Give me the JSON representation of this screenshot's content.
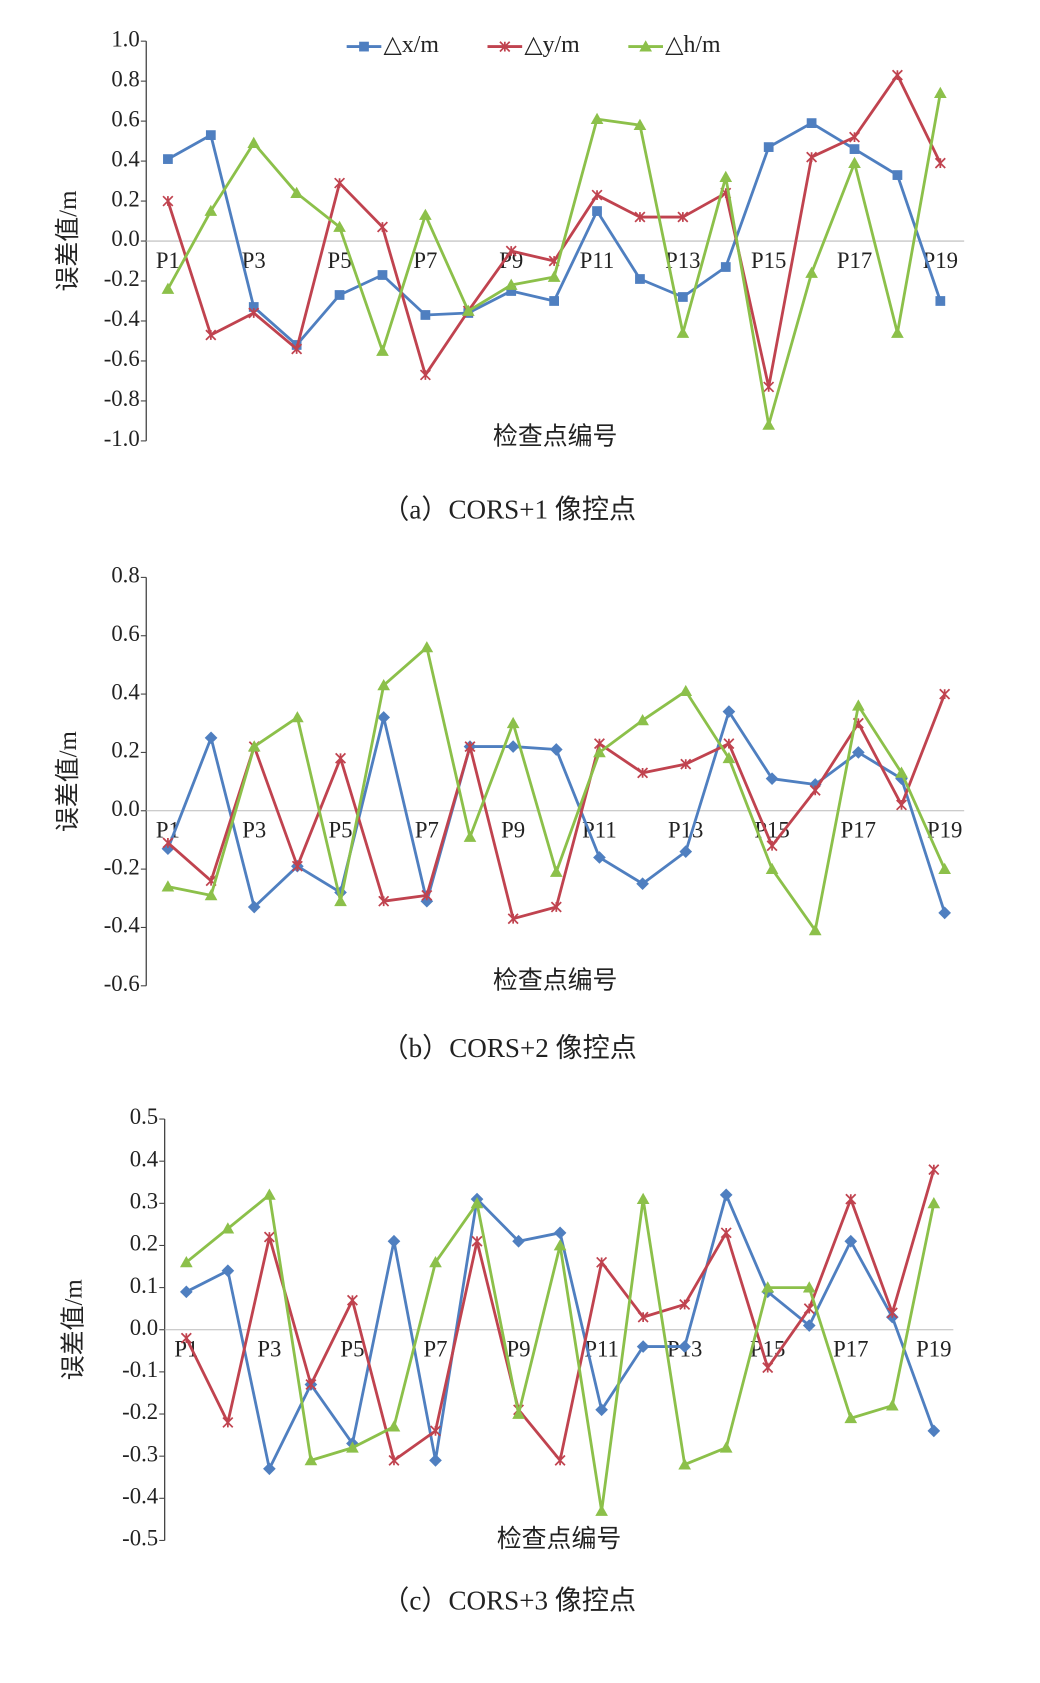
{
  "chart_data": [
    {
      "type": "line",
      "caption": "（a）CORS+1 像控点",
      "y_label": "误差值/m",
      "x_label": "检查点编号",
      "legend": "top",
      "categories": [
        "P1",
        null,
        "P3",
        null,
        "P5",
        null,
        "P7",
        null,
        "P9",
        null,
        "P11",
        null,
        "P13",
        null,
        "P15",
        null,
        "P17",
        null,
        "P19"
      ],
      "ylim": [
        -1,
        1
      ],
      "yticks": [
        {
          "value": -1,
          "label": "-1.0"
        },
        -0.8,
        -0.6,
        -0.4,
        -0.2,
        {
          "value": 0,
          "label": "0.0"
        },
        0.2,
        0.4,
        0.6,
        0.8,
        {
          "value": 1,
          "label": "1.0"
        }
      ],
      "series": [
        {
          "name": "△x/m",
          "color": "#4f7fc0",
          "marker": "square",
          "values": [
            0.41,
            0.53,
            -0.33,
            -0.52,
            -0.27,
            -0.17,
            -0.37,
            -0.36,
            -0.25,
            -0.3,
            0.15,
            -0.19,
            -0.28,
            -0.13,
            0.47,
            0.59,
            0.46,
            0.33,
            -0.3
          ]
        },
        {
          "name": "△y/m",
          "color": "#c0434f",
          "marker": "star",
          "values": [
            0.2,
            -0.47,
            -0.36,
            -0.54,
            0.29,
            0.07,
            -0.67,
            -0.35,
            -0.05,
            -0.1,
            0.23,
            0.12,
            0.12,
            0.24,
            -0.73,
            0.42,
            0.52,
            0.83,
            0.39
          ]
        },
        {
          "name": "△h/m",
          "color": "#8cc04a",
          "marker": "triangle",
          "values": [
            -0.24,
            0.15,
            0.49,
            0.24,
            0.07,
            -0.55,
            0.13,
            -0.35,
            -0.22,
            -0.18,
            0.61,
            0.58,
            -0.46,
            0.32,
            -0.92,
            -0.16,
            0.39,
            -0.46,
            0.74
          ]
        }
      ]
    },
    {
      "type": "line",
      "caption": "（b）CORS+2 像控点",
      "y_label": "误差值/m",
      "x_label": "检查点编号",
      "categories": [
        "P1",
        null,
        "P3",
        null,
        "P5",
        null,
        "P7",
        null,
        "P9",
        null,
        "P11",
        null,
        "P13",
        null,
        "P15",
        null,
        "P17",
        null,
        "P19"
      ],
      "ylim": [
        -0.6,
        0.8
      ],
      "yticks": [
        -0.6,
        -0.4,
        -0.2,
        {
          "value": 0,
          "label": "0.0"
        },
        0.2,
        0.4,
        0.6,
        0.8
      ],
      "series": [
        {
          "name": "△x/m",
          "color": "#4f7fc0",
          "marker": "diamond",
          "values": [
            -0.13,
            0.25,
            -0.33,
            -0.19,
            -0.28,
            0.32,
            -0.31,
            0.22,
            0.22,
            0.21,
            -0.16,
            -0.25,
            -0.14,
            0.34,
            0.11,
            0.09,
            0.2,
            0.11,
            -0.35
          ]
        },
        {
          "name": "△y/m",
          "color": "#c0434f",
          "marker": "star",
          "values": [
            -0.11,
            -0.24,
            0.22,
            -0.19,
            0.18,
            -0.31,
            -0.29,
            0.22,
            -0.37,
            -0.33,
            0.23,
            0.13,
            0.16,
            0.23,
            -0.12,
            0.07,
            0.3,
            0.02,
            0.4
          ]
        },
        {
          "name": "△h/m",
          "color": "#8cc04a",
          "marker": "triangle",
          "values": [
            -0.26,
            -0.29,
            0.22,
            0.32,
            -0.31,
            0.43,
            0.56,
            -0.09,
            0.3,
            -0.21,
            0.2,
            0.31,
            0.41,
            0.18,
            -0.2,
            -0.41,
            0.36,
            0.13,
            -0.2
          ]
        }
      ]
    },
    {
      "type": "line",
      "caption": "（c）CORS+3 像控点",
      "y_label": "误差值/m",
      "x_label": "检查点编号",
      "categories": [
        "P1",
        null,
        "P3",
        null,
        "P5",
        null,
        "P7",
        null,
        "P9",
        null,
        "P11",
        null,
        "P13",
        null,
        "P15",
        null,
        "P17",
        null,
        "P19"
      ],
      "ylim": [
        -0.5,
        0.5
      ],
      "yticks": [
        -0.5,
        -0.4,
        -0.3,
        -0.2,
        -0.1,
        {
          "value": 0,
          "label": "0.0"
        },
        0.1,
        0.2,
        0.3,
        0.4,
        0.5
      ],
      "series": [
        {
          "name": "△x/m",
          "color": "#4f7fc0",
          "marker": "diamond",
          "values": [
            0.09,
            0.14,
            -0.33,
            -0.13,
            -0.27,
            0.21,
            -0.31,
            0.31,
            0.21,
            0.23,
            -0.19,
            -0.04,
            -0.04,
            0.32,
            0.09,
            0.01,
            0.21,
            0.03,
            -0.24
          ]
        },
        {
          "name": "△y/m",
          "color": "#c0434f",
          "marker": "star",
          "values": [
            -0.02,
            -0.22,
            0.22,
            -0.13,
            0.07,
            -0.31,
            -0.24,
            0.21,
            -0.19,
            -0.31,
            0.16,
            0.03,
            0.06,
            0.23,
            -0.09,
            0.05,
            0.31,
            0.04,
            0.38
          ]
        },
        {
          "name": "△h/m",
          "color": "#8cc04a",
          "marker": "triangle",
          "values": [
            0.16,
            0.24,
            0.32,
            -0.31,
            -0.28,
            -0.23,
            0.16,
            0.3,
            -0.2,
            0.2,
            -0.43,
            0.31,
            -0.32,
            -0.28,
            0.1,
            0.1,
            -0.21,
            -0.18,
            0.3
          ]
        }
      ]
    }
  ]
}
